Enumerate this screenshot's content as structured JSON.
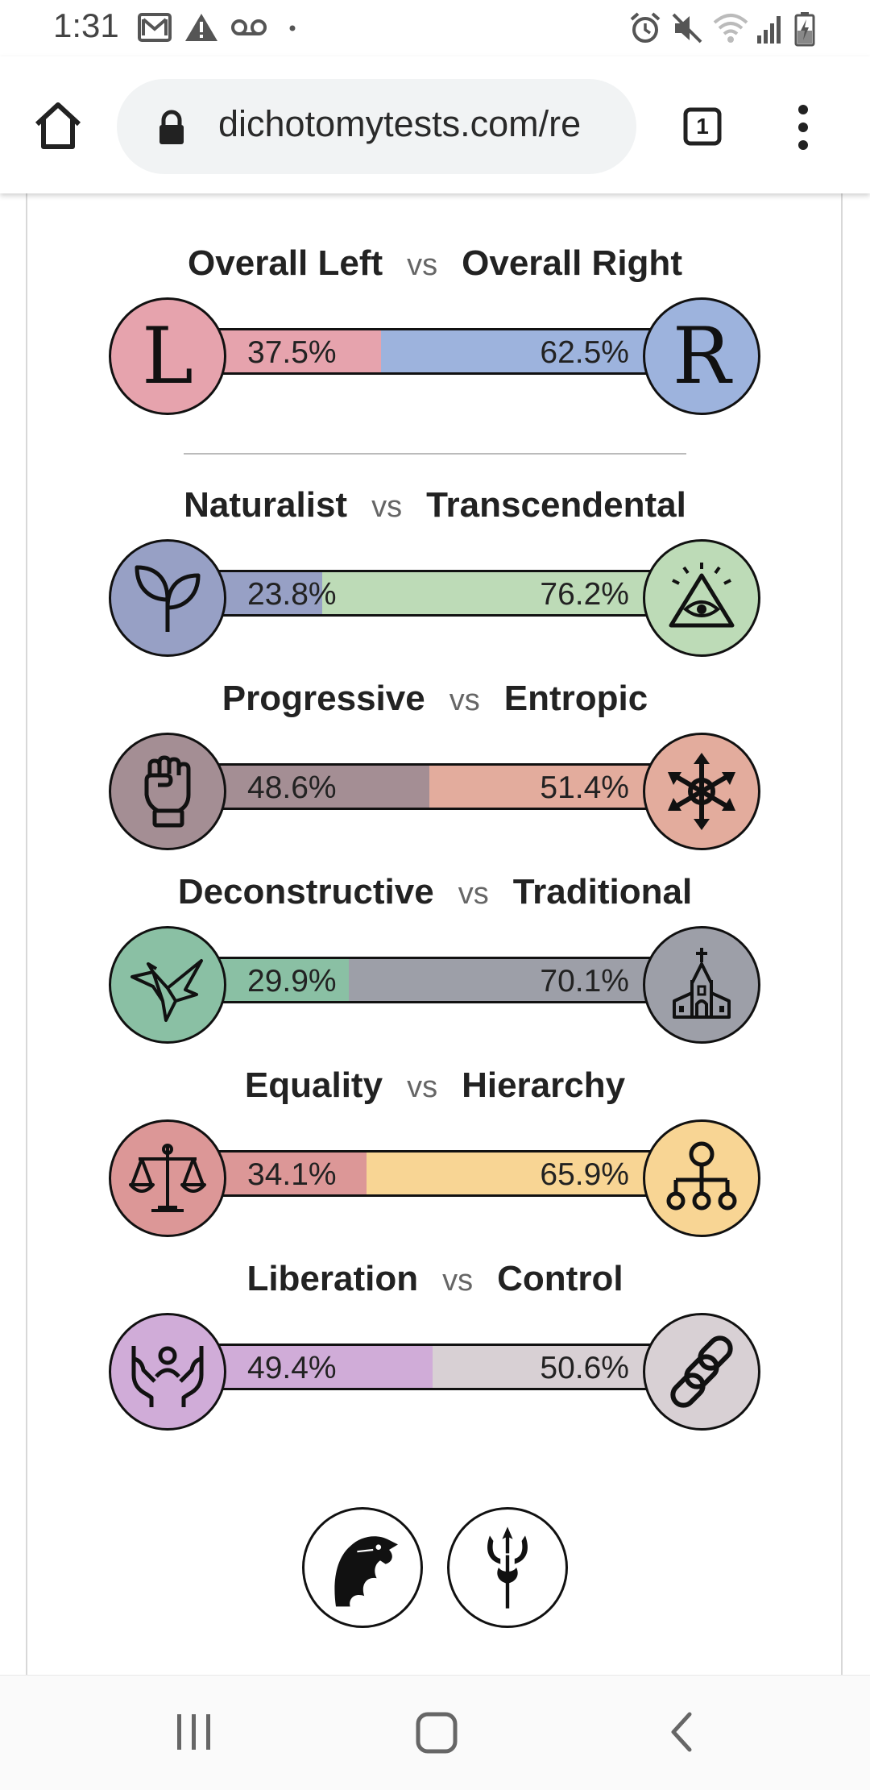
{
  "status_bar": {
    "time": "1:31",
    "left_icons": [
      "gmail-icon",
      "warning-icon",
      "voicemail-icon",
      "dot-icon"
    ],
    "right_icons": [
      "alarm-icon",
      "mute-icon",
      "wifi-icon",
      "signal-icon",
      "battery-icon"
    ]
  },
  "browser": {
    "url": "dichotomytests.com/re",
    "tab_count": "1",
    "icons": [
      "home-icon",
      "lock-icon",
      "tabs-icon",
      "more-icon"
    ]
  },
  "results": [
    {
      "left_label": "Overall Left",
      "vs": "vs",
      "right_label": "Overall Right",
      "left_pct": "37.5%",
      "right_pct": "62.5%",
      "left_fraction": 0.375,
      "left_color": "#e6a3ad",
      "right_color": "#9db3dd",
      "left_icon": "L",
      "right_icon": "R"
    },
    {
      "left_label": "Naturalist",
      "vs": "vs",
      "right_label": "Transcendental",
      "left_pct": "23.8%",
      "right_pct": "76.2%",
      "left_fraction": 0.238,
      "left_color": "#97a0c5",
      "right_color": "#bddbb7",
      "left_icon": "sprout-icon",
      "right_icon": "all-seeing-eye-icon"
    },
    {
      "left_label": "Progressive",
      "vs": "vs",
      "right_label": "Entropic",
      "left_pct": "48.6%",
      "right_pct": "51.4%",
      "left_fraction": 0.486,
      "left_color": "#a48e94",
      "right_color": "#e3ac9d",
      "left_icon": "raised-fist-icon",
      "right_icon": "chaos-star-icon"
    },
    {
      "left_label": "Deconstructive",
      "vs": "vs",
      "right_label": "Traditional",
      "left_pct": "29.9%",
      "right_pct": "70.1%",
      "left_fraction": 0.299,
      "left_color": "#8ac0a4",
      "right_color": "#9d9fa8",
      "left_icon": "origami-bird-icon",
      "right_icon": "church-icon"
    },
    {
      "left_label": "Equality",
      "vs": "vs",
      "right_label": "Hierarchy",
      "left_pct": "34.1%",
      "right_pct": "65.9%",
      "left_fraction": 0.341,
      "left_color": "#dc9797",
      "right_color": "#f8d594",
      "left_icon": "scales-icon",
      "right_icon": "hierarchy-icon"
    },
    {
      "left_label": "Liberation",
      "vs": "vs",
      "right_label": "Control",
      "left_pct": "49.4%",
      "right_pct": "50.6%",
      "left_fraction": 0.494,
      "left_color": "#d0acd8",
      "right_color": "#d8d0d4",
      "left_icon": "hands-person-icon",
      "right_icon": "chain-icon"
    }
  ],
  "footer_icons": [
    "eagle-icon",
    "trident-icon"
  ],
  "nav_bar": [
    "recents-icon",
    "home-nav-icon",
    "back-icon"
  ]
}
